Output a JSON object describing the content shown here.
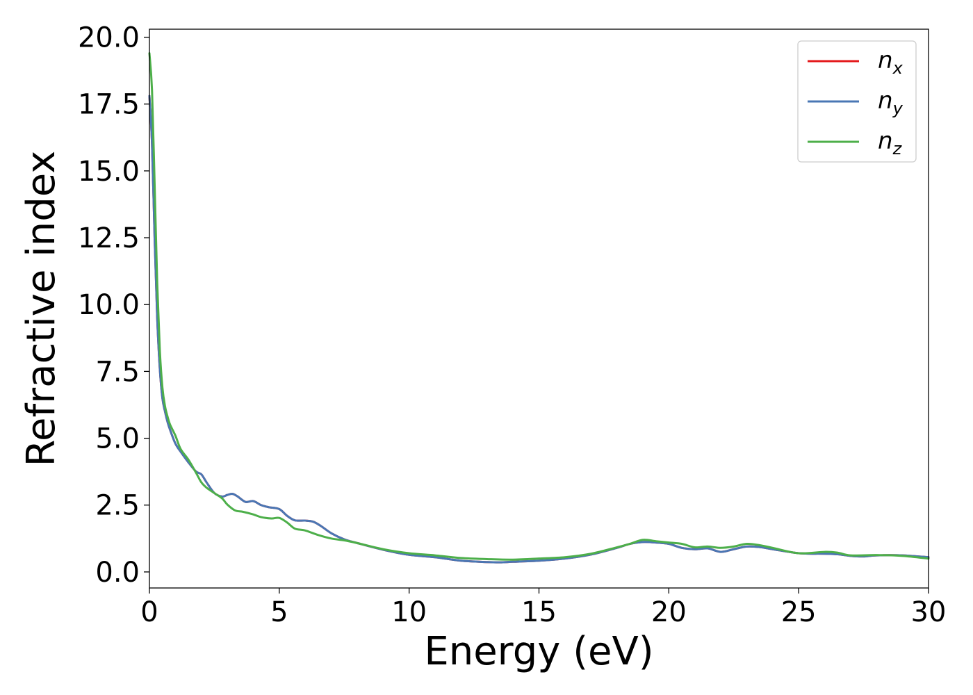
{
  "chart_data": {
    "type": "line",
    "xlabel": "Energy (eV)",
    "ylabel": "Refractive index",
    "xlim": [
      0,
      30
    ],
    "ylim": [
      -0.6,
      20.3
    ],
    "xticks": [
      "0",
      "5",
      "10",
      "15",
      "20",
      "25",
      "30"
    ],
    "yticks": [
      "0.0",
      "2.5",
      "5.0",
      "7.5",
      "10.0",
      "12.5",
      "15.0",
      "17.5",
      "20.0"
    ],
    "grid": false,
    "legend_position": "top-right",
    "series": [
      {
        "name": "x",
        "color": "#e41a1c",
        "x": [
          0,
          0.1,
          0.2,
          0.3,
          0.4,
          0.5,
          0.6,
          0.7,
          0.8,
          1.0,
          1.2,
          1.5,
          1.8,
          2.0,
          2.2,
          2.5,
          2.8,
          3.0,
          3.2,
          3.4,
          3.7,
          4.0,
          4.3,
          4.6,
          5.0,
          5.3,
          5.6,
          6.0,
          6.3,
          6.6,
          7.0,
          7.5,
          8.0,
          9.0,
          10.0,
          11.0,
          12.0,
          13.0,
          13.5,
          14.0,
          15.0,
          16.0,
          17.0,
          18.0,
          18.5,
          19.0,
          19.5,
          20.0,
          20.5,
          21.0,
          21.5,
          22.0,
          22.5,
          23.0,
          23.5,
          24.0,
          25.0,
          26.0,
          26.5,
          27.0,
          27.5,
          28.0,
          29.0,
          30.0
        ],
        "values": [
          17.8,
          16.0,
          12.5,
          9.5,
          7.6,
          6.5,
          6.0,
          5.6,
          5.3,
          4.8,
          4.5,
          4.1,
          3.75,
          3.65,
          3.35,
          2.95,
          2.82,
          2.88,
          2.92,
          2.82,
          2.62,
          2.65,
          2.5,
          2.42,
          2.35,
          2.1,
          1.93,
          1.92,
          1.88,
          1.72,
          1.45,
          1.22,
          1.08,
          0.83,
          0.64,
          0.55,
          0.42,
          0.37,
          0.36,
          0.38,
          0.42,
          0.5,
          0.65,
          0.9,
          1.05,
          1.12,
          1.1,
          1.05,
          0.9,
          0.85,
          0.88,
          0.75,
          0.85,
          0.95,
          0.93,
          0.85,
          0.7,
          0.68,
          0.66,
          0.6,
          0.58,
          0.62,
          0.62,
          0.55
        ]
      },
      {
        "name": "y",
        "color": "#4a77b4",
        "x": [
          0,
          0.1,
          0.2,
          0.3,
          0.4,
          0.5,
          0.6,
          0.7,
          0.8,
          1.0,
          1.2,
          1.5,
          1.8,
          2.0,
          2.2,
          2.5,
          2.8,
          3.0,
          3.2,
          3.4,
          3.7,
          4.0,
          4.3,
          4.6,
          5.0,
          5.3,
          5.6,
          6.0,
          6.3,
          6.6,
          7.0,
          7.5,
          8.0,
          9.0,
          10.0,
          11.0,
          12.0,
          13.0,
          13.5,
          14.0,
          15.0,
          16.0,
          17.0,
          18.0,
          18.5,
          19.0,
          19.5,
          20.0,
          20.5,
          21.0,
          21.5,
          22.0,
          22.5,
          23.0,
          23.5,
          24.0,
          25.0,
          26.0,
          26.5,
          27.0,
          27.5,
          28.0,
          29.0,
          30.0
        ],
        "values": [
          17.8,
          16.0,
          12.5,
          9.5,
          7.6,
          6.5,
          6.0,
          5.6,
          5.3,
          4.8,
          4.5,
          4.1,
          3.75,
          3.65,
          3.35,
          2.95,
          2.82,
          2.88,
          2.92,
          2.82,
          2.62,
          2.65,
          2.5,
          2.42,
          2.35,
          2.1,
          1.93,
          1.92,
          1.88,
          1.72,
          1.45,
          1.22,
          1.08,
          0.83,
          0.64,
          0.55,
          0.42,
          0.37,
          0.36,
          0.38,
          0.42,
          0.5,
          0.65,
          0.9,
          1.05,
          1.12,
          1.1,
          1.05,
          0.9,
          0.85,
          0.88,
          0.75,
          0.85,
          0.95,
          0.93,
          0.85,
          0.7,
          0.68,
          0.66,
          0.6,
          0.58,
          0.62,
          0.62,
          0.55
        ]
      },
      {
        "name": "z",
        "color": "#4daf4a",
        "x": [
          0,
          0.1,
          0.2,
          0.3,
          0.4,
          0.5,
          0.6,
          0.7,
          0.8,
          1.0,
          1.2,
          1.5,
          1.8,
          2.0,
          2.2,
          2.5,
          2.8,
          3.0,
          3.3,
          3.6,
          4.0,
          4.3,
          4.7,
          5.0,
          5.3,
          5.6,
          6.0,
          6.5,
          7.0,
          7.5,
          8.0,
          9.0,
          10.0,
          11.0,
          12.0,
          13.0,
          14.0,
          15.0,
          16.0,
          17.0,
          18.0,
          18.5,
          19.0,
          19.5,
          20.0,
          20.5,
          21.0,
          21.5,
          22.0,
          22.5,
          23.0,
          23.5,
          24.0,
          25.0,
          26.0,
          26.5,
          27.0,
          28.0,
          29.0,
          30.0
        ],
        "values": [
          19.4,
          18.0,
          14.5,
          10.8,
          8.3,
          6.9,
          6.2,
          5.8,
          5.5,
          5.1,
          4.6,
          4.2,
          3.7,
          3.35,
          3.15,
          2.95,
          2.75,
          2.52,
          2.3,
          2.25,
          2.15,
          2.05,
          2.0,
          2.02,
          1.85,
          1.62,
          1.55,
          1.38,
          1.25,
          1.18,
          1.08,
          0.85,
          0.7,
          0.62,
          0.52,
          0.48,
          0.46,
          0.5,
          0.55,
          0.68,
          0.92,
          1.05,
          1.2,
          1.15,
          1.1,
          1.05,
          0.92,
          0.95,
          0.9,
          0.95,
          1.05,
          1.0,
          0.9,
          0.7,
          0.75,
          0.72,
          0.62,
          0.63,
          0.6,
          0.5
        ]
      }
    ]
  }
}
